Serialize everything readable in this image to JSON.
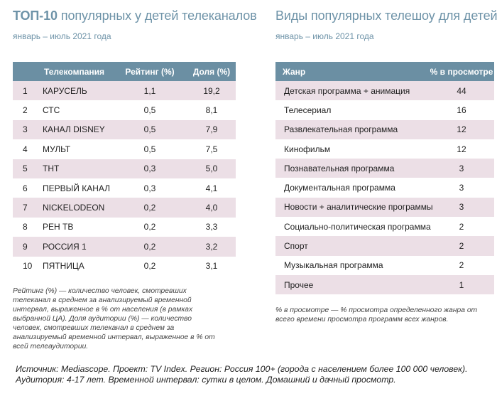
{
  "left": {
    "title_bold": "ТОП-10",
    "title_rest": "популярных у детей телеканалов",
    "subtitle": "январь – июль 2021 года",
    "headers": {
      "num": "",
      "company": "Телекомпания",
      "rating": "Рейтинг (%)",
      "share": "Доля (%)"
    },
    "rows": [
      {
        "num": "1",
        "name": "КАРУСЕЛЬ",
        "rating": "1,1",
        "share": "19,2"
      },
      {
        "num": "2",
        "name": "СТС",
        "rating": "0,5",
        "share": "8,1"
      },
      {
        "num": "3",
        "name": "КАНАЛ DISNEY",
        "rating": "0,5",
        "share": "7,9"
      },
      {
        "num": "4",
        "name": "МУЛЬТ",
        "rating": "0,5",
        "share": "7,5"
      },
      {
        "num": "5",
        "name": "ТНТ",
        "rating": "0,3",
        "share": "5,0"
      },
      {
        "num": "6",
        "name": "ПЕРВЫЙ КАНАЛ",
        "rating": "0,3",
        "share": "4,1"
      },
      {
        "num": "7",
        "name": "NICKELODEON",
        "rating": "0,2",
        "share": "4,0"
      },
      {
        "num": "8",
        "name": "РЕН ТВ",
        "rating": "0,2",
        "share": "3,3"
      },
      {
        "num": "9",
        "name": "РОССИЯ 1",
        "rating": "0,2",
        "share": "3,2"
      },
      {
        "num": "10",
        "name": "ПЯТНИЦА",
        "rating": "0,2",
        "share": "3,1"
      }
    ],
    "note": "Рейтинг (%) — количество человек, смотревших телеканал в среднем за анализируемый временной интервал, выраженное в % от населения (в рамках выбранной ЦА). Доля аудитории (%) — количество человек, смотревших телеканал в среднем за анализируемый временной интервал, выраженное в % от всей телеаудитории."
  },
  "right": {
    "title": "Виды популярных телешоу для детей",
    "subtitle": "январь – июль 2021 года",
    "headers": {
      "genre": "Жанр",
      "pct": "% в просмотре"
    },
    "rows": [
      {
        "genre": "Детская программа + анимация",
        "pct": "44"
      },
      {
        "genre": "Телесериал",
        "pct": "16"
      },
      {
        "genre": "Развлекательная программа",
        "pct": "12"
      },
      {
        "genre": "Кинофильм",
        "pct": "12"
      },
      {
        "genre": "Познавательная программа",
        "pct": "3"
      },
      {
        "genre": "Документальная программа",
        "pct": "3"
      },
      {
        "genre": "Новости + аналитические программы",
        "pct": "3"
      },
      {
        "genre": "Социально-политическая программа",
        "pct": "2"
      },
      {
        "genre": "Спорт",
        "pct": "2"
      },
      {
        "genre": "Музыкальная программа",
        "pct": "2"
      },
      {
        "genre": "Прочее",
        "pct": "1"
      }
    ],
    "note": "% в просмотре — % просмотра определенного жанра от всего времени просмотра программ всех жанров."
  },
  "footer": {
    "line1": "Источник: Mediascope. Проект: TV Index. Регион: Россия 100+ (города с населением более 100 000 человек).",
    "line2": "Аудитория: 4-17 лет. Временной интервал: сутки в целом. Домашний и дачный просмотр."
  },
  "colors": {
    "header_bg": "#6b8fa3",
    "stripe": "#ecdfe6",
    "title": "#6e93a8"
  }
}
